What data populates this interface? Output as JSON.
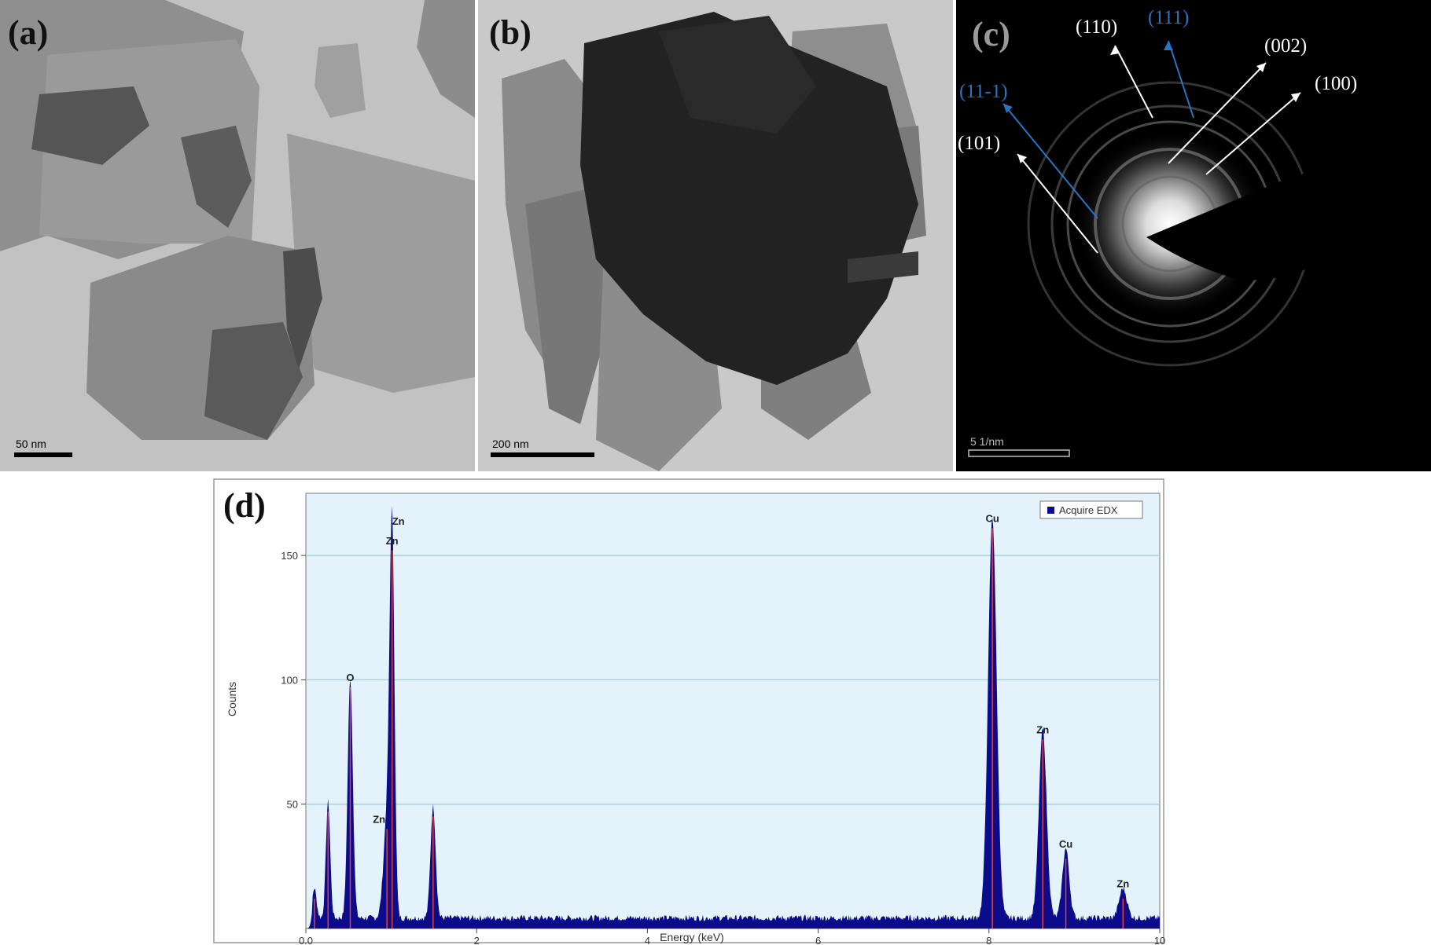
{
  "panels": {
    "a": {
      "label": "(a)",
      "scale_bar": "50 nm"
    },
    "b": {
      "label": "(b)",
      "scale_bar": "200 nm"
    },
    "c": {
      "label": "(c)",
      "scale_bar": "5 1/nm",
      "ring_labels": [
        {
          "text": "(110)",
          "color": "#ffffff"
        },
        {
          "text": "(111)",
          "color": "#2a74c2"
        },
        {
          "text": "(002)",
          "color": "#ffffff"
        },
        {
          "text": "(100)",
          "color": "#ffffff"
        },
        {
          "text": "(11-1)",
          "color": "#2a74c2"
        },
        {
          "text": "(101)",
          "color": "#ffffff"
        }
      ]
    },
    "d": {
      "label": "(d)"
    }
  },
  "chart_data": {
    "type": "area",
    "title": "",
    "xlabel": "Energy (keV)",
    "ylabel": "Counts",
    "xlim": [
      0,
      10
    ],
    "ylim": [
      0,
      175
    ],
    "x_ticks": [
      "0.0",
      "2",
      "4",
      "6",
      "8",
      "10"
    ],
    "y_ticks": [
      "50",
      "100",
      "150"
    ],
    "grid": "horizontal",
    "legend": {
      "entry": "Acquire EDX",
      "placement": "top-right"
    },
    "colors": {
      "fill": "#0b0b8c",
      "marker_line": "#e04040",
      "plot_bg": "#e4f3fb",
      "gridline": "#9fd3e3"
    },
    "series": [
      {
        "name": "Acquire EDX",
        "peaks": [
          {
            "energy": 0.1,
            "counts": 12
          },
          {
            "energy": 0.26,
            "counts": 47
          },
          {
            "energy": 0.52,
            "counts": 97
          },
          {
            "energy": 0.95,
            "counts": 40
          },
          {
            "energy": 1.01,
            "counts": 152
          },
          {
            "energy": 1.49,
            "counts": 45
          },
          {
            "energy": 8.04,
            "counts": 161
          },
          {
            "energy": 8.63,
            "counts": 76
          },
          {
            "energy": 8.9,
            "counts": 28
          },
          {
            "energy": 9.57,
            "counts": 12
          }
        ]
      }
    ],
    "peak_labels": [
      {
        "text": "O",
        "energy": 0.52,
        "counts": 97
      },
      {
        "text": "Zn",
        "energy": 1.01,
        "counts": 158
      },
      {
        "text": "Zn",
        "energy": 1.01,
        "counts": 152
      },
      {
        "text": "Zn",
        "energy": 0.95,
        "counts": 40
      },
      {
        "text": "Cu",
        "energy": 8.04,
        "counts": 161
      },
      {
        "text": "Zn",
        "energy": 8.63,
        "counts": 76
      },
      {
        "text": "Cu",
        "energy": 8.9,
        "counts": 30
      },
      {
        "text": "Zn",
        "energy": 9.57,
        "counts": 14
      }
    ]
  }
}
